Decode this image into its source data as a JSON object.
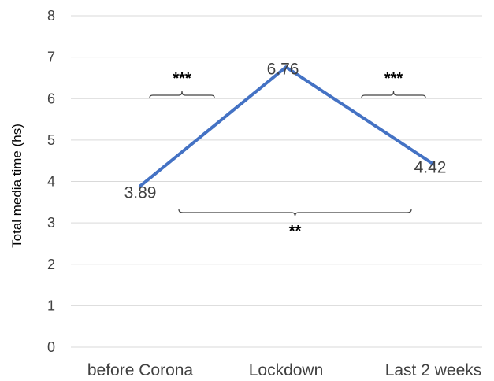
{
  "chart_data": {
    "type": "line",
    "categories": [
      "before Corona",
      "Lockdown",
      "Last 2 weeks"
    ],
    "series": [
      {
        "values": [
          3.89,
          6.76,
          4.42
        ],
        "color": "#4472c4"
      }
    ],
    "data_labels": [
      "3.89",
      "6.76",
      "4.42"
    ],
    "title": "",
    "xlabel": "",
    "ylabel": "Total media time (hs)",
    "ylim": [
      0,
      8
    ],
    "yticks": [
      "0",
      "1",
      "2",
      "3",
      "4",
      "5",
      "6",
      "7",
      "8"
    ],
    "grid": true,
    "legend": "none",
    "gridline_color": "#d9d9d9",
    "annotations": [
      {
        "from": 0,
        "to": 1,
        "text": "***",
        "position": "above"
      },
      {
        "from": 1,
        "to": 2,
        "text": "***",
        "position": "above"
      },
      {
        "from": 0,
        "to": 2,
        "text": "**",
        "position": "below"
      }
    ]
  }
}
